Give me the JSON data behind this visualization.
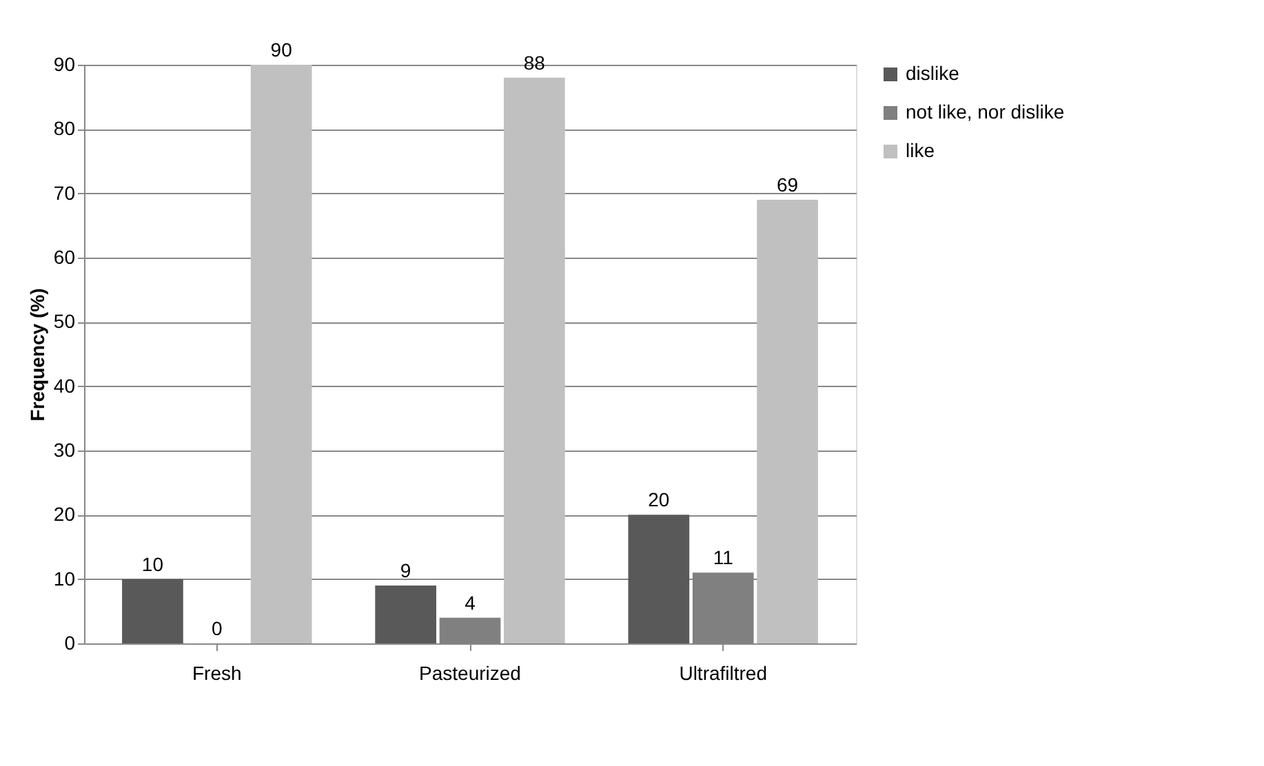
{
  "chart_data": {
    "type": "bar",
    "ylabel": "Frequency (%)",
    "categories": [
      "Fresh",
      "Pasteurized",
      "Ultrafiltred"
    ],
    "series": [
      {
        "name": "dislike",
        "color": "#595959",
        "values": [
          10,
          9,
          20
        ]
      },
      {
        "name": "not like, nor dislike",
        "color": "#808080",
        "values": [
          0,
          4,
          11
        ]
      },
      {
        "name": "like",
        "color": "#c0c0c0",
        "values": [
          90,
          88,
          69
        ]
      }
    ],
    "ylim": [
      0,
      90
    ],
    "yticks": [
      0,
      10,
      20,
      30,
      40,
      50,
      60,
      70,
      80,
      90
    ],
    "grid": "y",
    "legend": "right",
    "data_labels": true
  }
}
